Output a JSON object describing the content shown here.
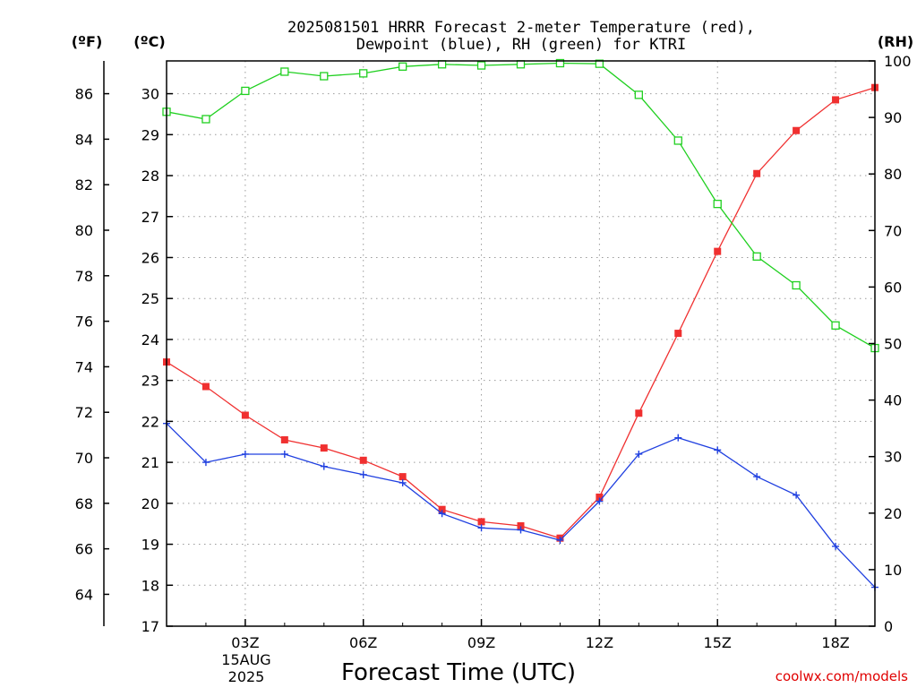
{
  "chart_data": {
    "type": "line",
    "title": "2025081501 HRRR Forecast 2-meter Temperature (red),",
    "subtitle": "Dewpoint (blue), RH (green) for KTRI",
    "xlabel": "Forecast Time (UTC)",
    "credit": "coolwx.com/models",
    "date_label": [
      "15AUG",
      "2025"
    ],
    "left_outer_unit": "(ºF)",
    "left_inner_unit": "(ºC)",
    "right_unit": "(RH)",
    "x_range": [
      1,
      19
    ],
    "x_ticks": [
      {
        "x": 3,
        "label": "03Z"
      },
      {
        "x": 6,
        "label": "06Z"
      },
      {
        "x": 9,
        "label": "09Z"
      },
      {
        "x": 12,
        "label": "12Z"
      },
      {
        "x": 15,
        "label": "15Z"
      },
      {
        "x": 18,
        "label": "18Z"
      }
    ],
    "celsius_range": [
      17,
      30.8
    ],
    "celsius_ticks": [
      17,
      18,
      19,
      20,
      21,
      22,
      23,
      24,
      25,
      26,
      27,
      28,
      29,
      30
    ],
    "fahrenheit_ticks": [
      64,
      66,
      68,
      70,
      72,
      74,
      76,
      78,
      80,
      82,
      84,
      86
    ],
    "rh_range": [
      0,
      100
    ],
    "rh_ticks": [
      0,
      10,
      20,
      30,
      40,
      50,
      60,
      70,
      80,
      90,
      100
    ],
    "grid": true,
    "x": [
      1,
      2,
      3,
      4,
      5,
      6,
      7,
      8,
      9,
      10,
      11,
      12,
      13,
      14,
      15,
      16,
      17,
      18,
      19
    ],
    "series": [
      {
        "axis": "celsius",
        "color": "#f03030",
        "marker": "filled-square",
        "values": [
          23.45,
          22.85,
          22.15,
          21.55,
          21.35,
          21.05,
          20.65,
          19.85,
          19.55,
          19.45,
          19.15,
          20.15,
          22.2,
          24.15,
          26.15,
          28.05,
          29.1,
          29.85,
          30.15
        ]
      },
      {
        "axis": "celsius",
        "color": "#2040e0",
        "marker": "plus",
        "values": [
          21.95,
          21.0,
          21.2,
          21.2,
          20.9,
          20.7,
          20.5,
          19.75,
          19.4,
          19.35,
          19.1,
          20.05,
          21.2,
          21.6,
          21.3,
          20.65,
          20.2,
          18.95,
          17.95
        ]
      },
      {
        "axis": "rh",
        "color": "#20d020",
        "marker": "open-square",
        "values": [
          91,
          89.7,
          94.7,
          98.1,
          97.3,
          97.8,
          99.0,
          99.4,
          99.2,
          99.4,
          99.6,
          99.5,
          94.0,
          85.9,
          74.7,
          65.4,
          60.3,
          53.2,
          49.2
        ]
      }
    ]
  }
}
